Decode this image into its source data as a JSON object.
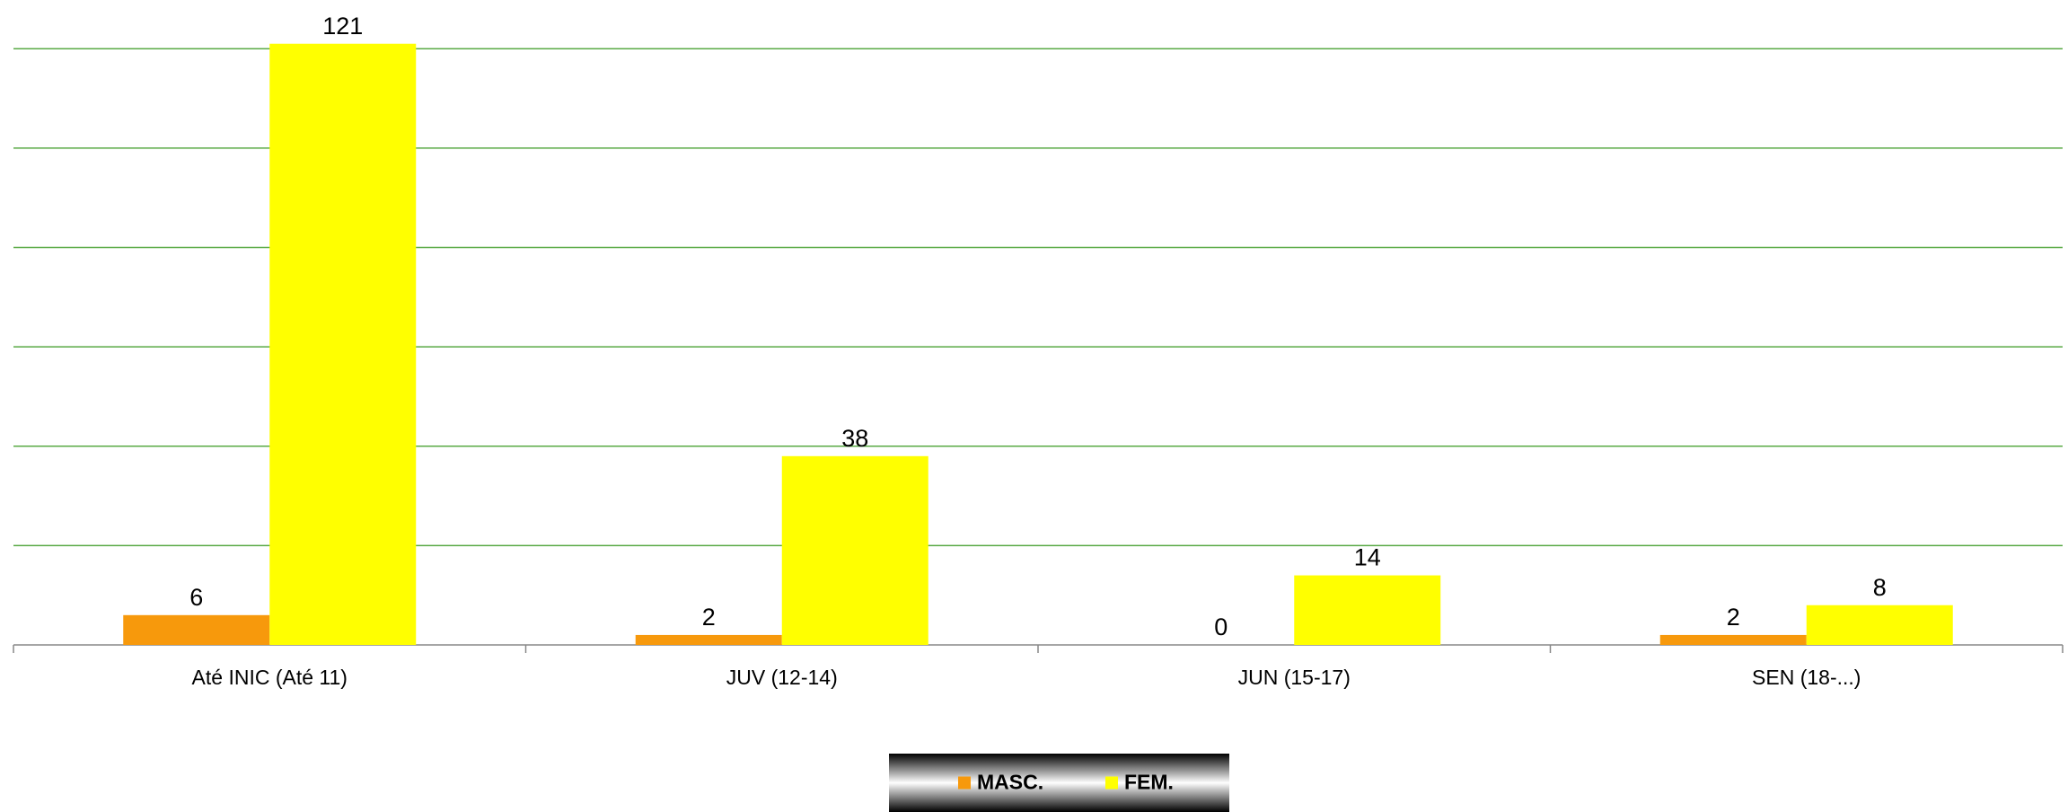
{
  "chart_data": {
    "type": "bar",
    "categories": [
      "Até INIC (Até 11)",
      "JUV (12-14)",
      "JUN (15-17)",
      "SEN (18-...)"
    ],
    "series": [
      {
        "name": "MASC.",
        "color": "#f7990c",
        "values": [
          6,
          2,
          0,
          2
        ]
      },
      {
        "name": "FEM.",
        "color": "#ffff00",
        "values": [
          121,
          38,
          14,
          8
        ]
      }
    ],
    "ylim": [
      0,
      128
    ],
    "yticks": [
      0,
      20,
      40,
      60,
      80,
      100,
      120
    ],
    "grid": true,
    "legend": "bottom"
  }
}
